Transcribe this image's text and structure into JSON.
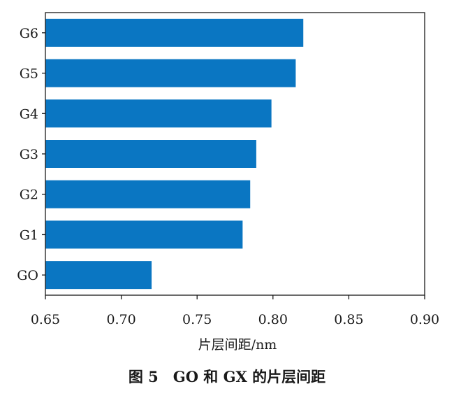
{
  "chart_data": {
    "type": "bar",
    "orientation": "horizontal",
    "categories": [
      "GO",
      "G1",
      "G2",
      "G3",
      "G4",
      "G5",
      "G6"
    ],
    "values": [
      0.72,
      0.78,
      0.785,
      0.789,
      0.799,
      0.815,
      0.82
    ],
    "xlabel": "片层间距/nm",
    "ylabel": "",
    "xlim": [
      0.65,
      0.9
    ],
    "xticks": [
      "0.65",
      "0.70",
      "0.75",
      "0.80",
      "0.85",
      "0.90"
    ],
    "grid": false,
    "bar_color": "#0a76c2"
  },
  "caption": "图 5　GO 和 GX 的片层间距"
}
